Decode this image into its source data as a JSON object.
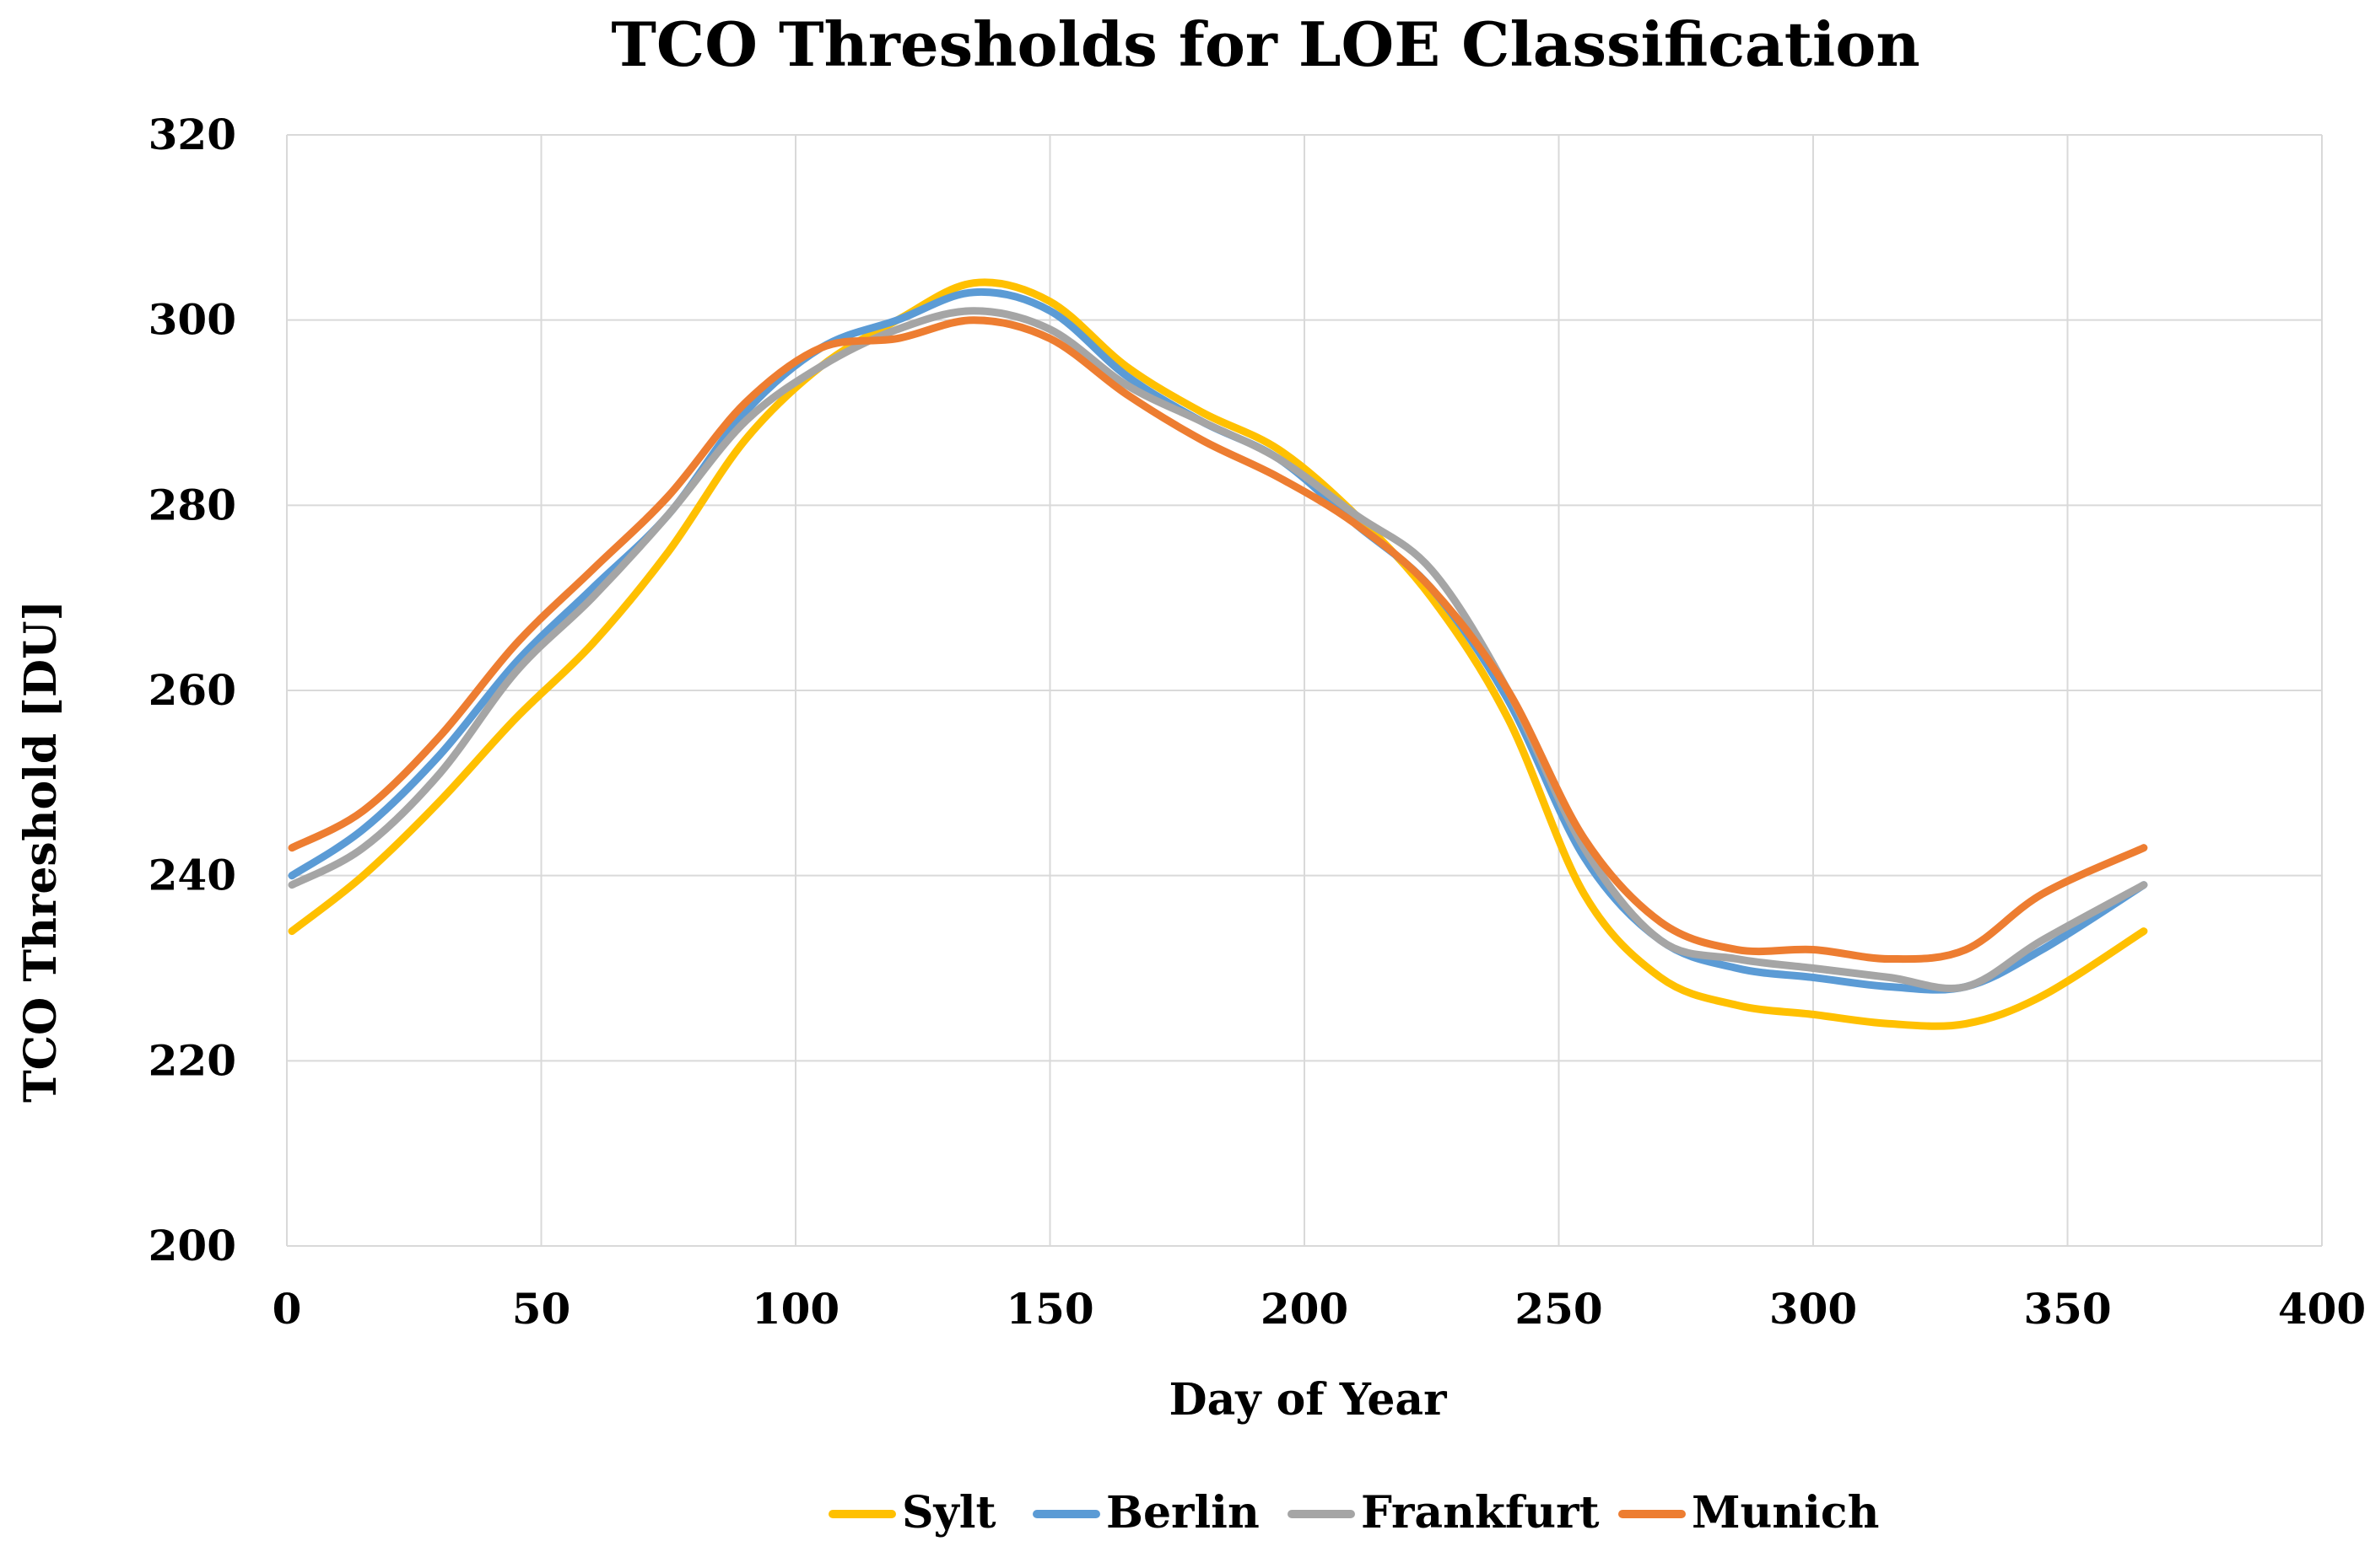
{
  "chart_data": {
    "type": "line",
    "title": "TCO Thresholds for LOE Classification",
    "xlabel": "Day of Year",
    "ylabel": "TCO Threshold [DU]",
    "xlim": [
      0,
      400
    ],
    "ylim": [
      200,
      320
    ],
    "xticks": [
      0,
      50,
      100,
      150,
      200,
      250,
      300,
      350,
      400
    ],
    "yticks": [
      200,
      220,
      240,
      260,
      280,
      300,
      320
    ],
    "grid": true,
    "legend_position": "bottom",
    "x": [
      1,
      15,
      30,
      45,
      60,
      75,
      90,
      105,
      120,
      135,
      150,
      165,
      180,
      195,
      210,
      225,
      240,
      255,
      270,
      285,
      300,
      315,
      330,
      345,
      365
    ],
    "series": [
      {
        "name": "Sylt",
        "color": "#FFC000",
        "values": [
          234,
          240,
          248,
          257,
          265,
          275,
          287,
          295,
          300,
          304,
          302,
          295,
          290,
          286,
          279,
          270,
          257,
          238,
          229,
          226,
          225,
          224,
          224,
          227,
          234
        ]
      },
      {
        "name": "Berlin",
        "color": "#5B9BD5",
        "values": [
          240,
          245,
          253,
          263,
          271,
          279,
          290,
          297,
          300,
          303,
          301,
          294,
          289,
          285,
          278,
          271,
          259,
          242,
          233,
          230,
          229,
          228,
          228,
          232,
          239
        ]
      },
      {
        "name": "Frankfurt",
        "color": "#A5A5A5",
        "values": [
          239,
          243,
          251,
          262,
          270,
          279,
          289,
          295,
          299,
          301,
          299,
          293,
          289,
          285,
          279,
          273,
          260,
          243,
          233,
          231,
          230,
          229,
          228,
          233,
          239
        ]
      },
      {
        "name": "Munich",
        "color": "#ED7D31",
        "values": [
          243,
          247,
          255,
          265,
          273,
          281,
          291,
          297,
          298,
          300,
          298,
          292,
          287,
          283,
          278,
          271,
          260,
          244,
          235,
          232,
          232,
          231,
          232,
          238,
          243
        ]
      }
    ]
  }
}
